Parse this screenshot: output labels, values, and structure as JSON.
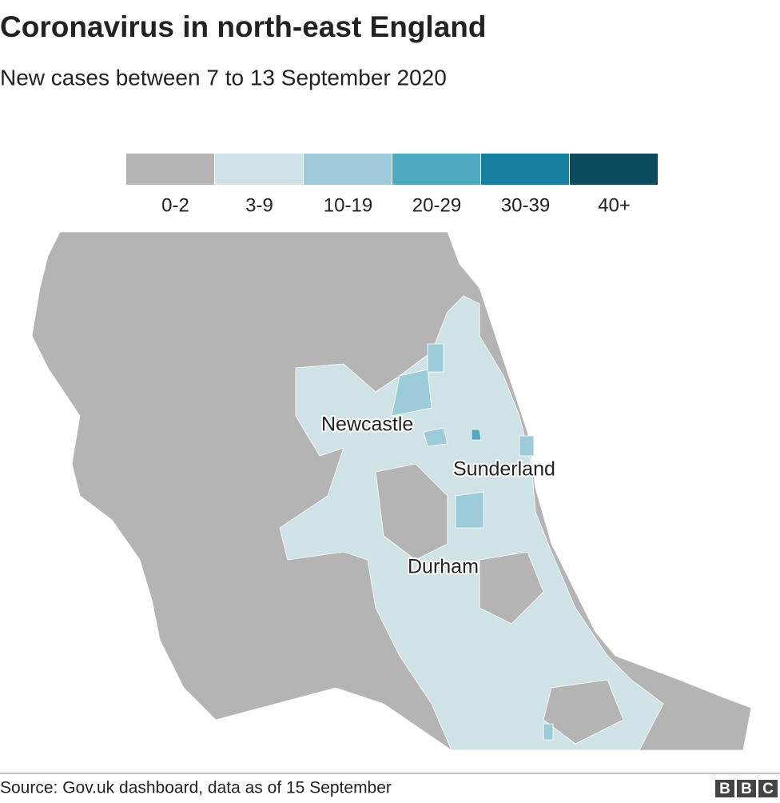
{
  "header": {
    "title": "Coronavirus in north-east England",
    "subtitle": "New cases between 7 to 13 September 2020"
  },
  "legend": [
    {
      "label": "0-2",
      "color": "#b4b4b4"
    },
    {
      "label": "3-9",
      "color": "#cfe2e6"
    },
    {
      "label": "10-19",
      "color": "#9dcbd9"
    },
    {
      "label": "20-29",
      "color": "#4eaac0"
    },
    {
      "label": "30-39",
      "color": "#177fa1"
    },
    {
      "label": "40+",
      "color": "#0c4b5f"
    }
  ],
  "places": [
    "Newcastle",
    "Sunderland",
    "Durham"
  ],
  "footer": {
    "source": "Source: Gov.uk dashboard, data as of 15 September",
    "logo": [
      "B",
      "B",
      "C"
    ]
  }
}
